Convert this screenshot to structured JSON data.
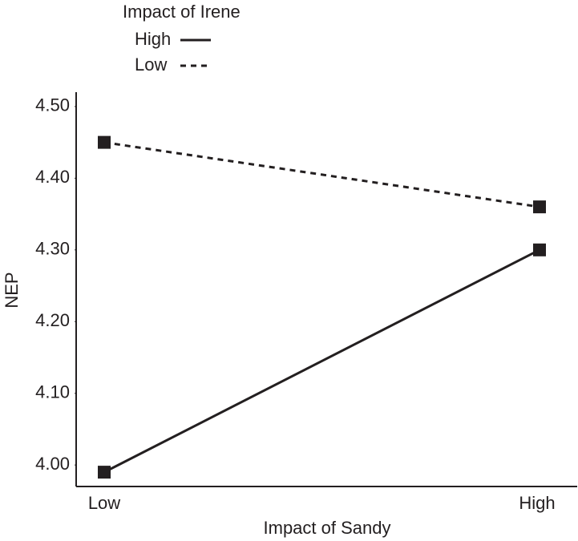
{
  "chart_data": {
    "type": "line",
    "x_label": "Impact of Sandy",
    "y_label": "NEP",
    "legend_title": "Impact of Irene",
    "categories": [
      "Low",
      "High"
    ],
    "series": [
      {
        "name": "High",
        "color": "#231f20",
        "line_style": "solid",
        "values": [
          3.99,
          4.3
        ]
      },
      {
        "name": "Low",
        "color": "#231f20",
        "line_style": "dashed",
        "values": [
          4.45,
          4.36
        ]
      }
    ],
    "ylim": [
      3.97,
      4.52
    ],
    "yticks": [
      {
        "value": 4.0,
        "label": "4.00"
      },
      {
        "value": 4.1,
        "label": "4.10"
      },
      {
        "value": 4.2,
        "label": "4.20"
      },
      {
        "value": 4.3,
        "label": "4.30"
      },
      {
        "value": 4.4,
        "label": "4.40"
      },
      {
        "value": 4.5,
        "label": "4.50"
      }
    ],
    "legend_position": "top-left"
  }
}
